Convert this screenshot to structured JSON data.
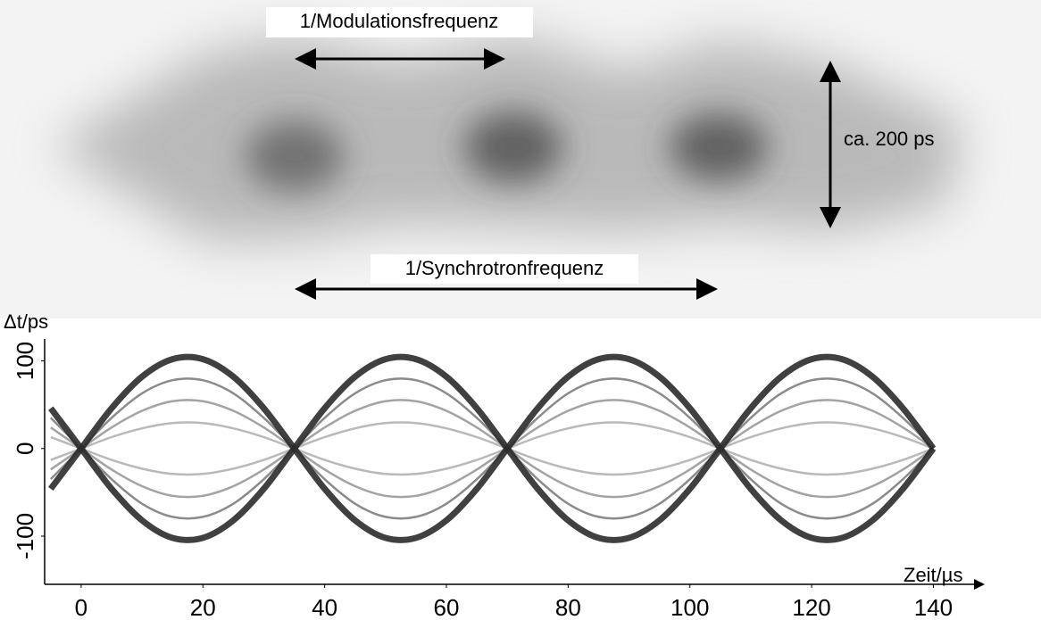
{
  "chart_data": {
    "type": "line",
    "annotations": [
      "1/Modulationsfrequenz",
      "ca. 200 ps",
      "1/Synchrotronfrequenz"
    ],
    "ylabel": "Δt/ps",
    "xlabel": "Zeit/µs",
    "xlim": [
      -6,
      148
    ],
    "xticks": [
      0,
      20,
      40,
      60,
      80,
      100,
      120,
      140
    ],
    "ylim": [
      -155,
      125
    ],
    "yticks": [
      -100,
      0,
      100
    ],
    "x": [
      -5,
      0,
      5,
      10,
      15,
      20,
      25,
      30,
      35,
      40,
      45,
      50,
      55,
      60,
      65,
      70,
      75,
      80,
      85,
      90,
      95,
      100,
      105,
      110,
      115,
      120,
      125,
      130,
      135,
      140
    ],
    "series": [
      {
        "color": "#2b2b2b",
        "values": [
          46,
          0,
          -46,
          -82,
          -102,
          -102,
          -82,
          -46,
          0,
          46,
          82,
          102,
          102,
          82,
          46,
          0,
          -46,
          -82,
          -102,
          -102,
          -82,
          -46,
          0,
          46,
          82,
          102,
          102,
          82,
          46,
          0
        ]
      },
      {
        "color": "#2b2b2b",
        "values": [
          -46,
          0,
          46,
          82,
          102,
          102,
          82,
          46,
          0,
          -46,
          -82,
          -102,
          -102,
          -82,
          -46,
          0,
          46,
          82,
          102,
          102,
          82,
          46,
          0,
          -46,
          -82,
          -102,
          -102,
          -82,
          -46,
          0
        ]
      },
      {
        "color": "#6e6e6e",
        "values": [
          35,
          0,
          -35,
          -63,
          -78,
          -78,
          -63,
          -35,
          0,
          35,
          63,
          78,
          78,
          63,
          35,
          0,
          -35,
          -63,
          -78,
          -78,
          -63,
          -35,
          0,
          35,
          63,
          78,
          78,
          63,
          35,
          0
        ]
      },
      {
        "color": "#6e6e6e",
        "values": [
          -35,
          0,
          35,
          63,
          78,
          78,
          63,
          35,
          0,
          -35,
          -63,
          -78,
          -78,
          -63,
          -35,
          0,
          35,
          63,
          78,
          78,
          63,
          35,
          0,
          -35,
          -63,
          -78,
          -78,
          -63,
          -35,
          0
        ]
      },
      {
        "color": "#8c8c8c",
        "values": [
          24,
          0,
          -24,
          -43,
          -54,
          -54,
          -43,
          -24,
          0,
          24,
          43,
          54,
          54,
          43,
          24,
          0,
          -24,
          -43,
          -54,
          -54,
          -43,
          -24,
          0,
          24,
          43,
          54,
          54,
          43,
          24,
          0
        ]
      },
      {
        "color": "#8c8c8c",
        "values": [
          -24,
          0,
          24,
          43,
          54,
          54,
          43,
          24,
          0,
          -24,
          -43,
          -54,
          -54,
          -43,
          -24,
          0,
          24,
          43,
          54,
          54,
          43,
          24,
          0,
          -24,
          -43,
          -54,
          -54,
          -43,
          -24,
          0
        ]
      },
      {
        "color": "#a8a8a8",
        "values": [
          13,
          0,
          -13,
          -23,
          -29,
          -29,
          -23,
          -13,
          0,
          13,
          23,
          29,
          29,
          23,
          13,
          0,
          -13,
          -23,
          -29,
          -29,
          -23,
          -13,
          0,
          13,
          23,
          29,
          29,
          23,
          13,
          0
        ]
      },
      {
        "color": "#a8a8a8",
        "values": [
          -13,
          0,
          13,
          23,
          29,
          29,
          23,
          13,
          0,
          -13,
          -23,
          -29,
          -29,
          -23,
          -13,
          0,
          13,
          23,
          29,
          29,
          23,
          13,
          0,
          -13,
          -23,
          -29,
          -29,
          -23,
          -13,
          0
        ]
      }
    ]
  }
}
